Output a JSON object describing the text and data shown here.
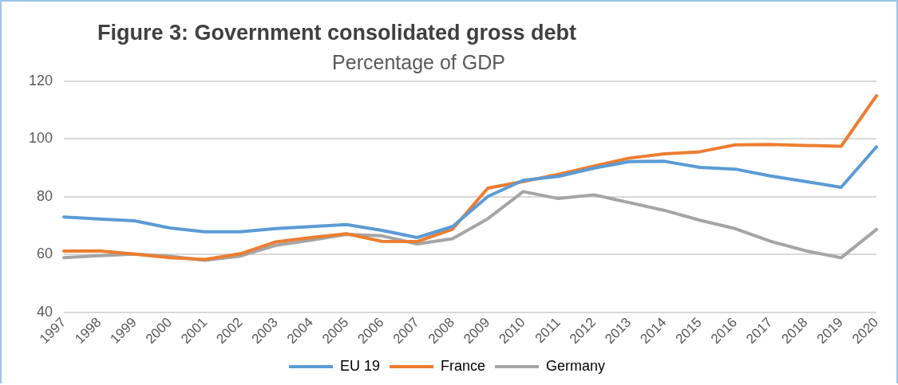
{
  "chart_data": {
    "type": "line",
    "title": "Figure 3: Government consolidated gross debt",
    "subtitle": "Percentage of GDP",
    "categories": [
      "1997",
      "1998",
      "1999",
      "2000",
      "2001",
      "2002",
      "2003",
      "2004",
      "2005",
      "2006",
      "2007",
      "2008",
      "2009",
      "2010",
      "2011",
      "2012",
      "2013",
      "2014",
      "2015",
      "2016",
      "2017",
      "2018",
      "2019",
      "2020"
    ],
    "series": [
      {
        "name": "EU 19",
        "color": "#5b9bd5",
        "values": [
          73,
          72.3,
          71.7,
          69.2,
          67.9,
          67.9,
          69,
          69.7,
          70.4,
          68.4,
          65.9,
          69.7,
          80.1,
          85.7,
          87.1,
          89.9,
          92.2,
          92.3,
          90.2,
          89.6,
          87.2,
          85.3,
          83.3,
          97.3
        ]
      },
      {
        "name": "France",
        "color": "#ed7d31",
        "values": [
          61.2,
          61.3,
          60.2,
          58.9,
          58.3,
          60.3,
          64.4,
          65.9,
          67.2,
          64.6,
          64.5,
          68.8,
          83,
          85.3,
          87.8,
          90.6,
          93.4,
          94.9,
          95.6,
          98,
          98.1,
          97.8,
          97.5,
          115
        ]
      },
      {
        "name": "Germany",
        "color": "#a5a5a5",
        "values": [
          58.9,
          59.6,
          60.2,
          59.4,
          58,
          59.5,
          63.2,
          65,
          67,
          66.5,
          63.7,
          65.5,
          72.4,
          81.8,
          79.4,
          80.7,
          78,
          75.3,
          71.9,
          69,
          64.6,
          61.3,
          58.9,
          68.7
        ]
      }
    ],
    "ylim": [
      40,
      120
    ],
    "yticks": [
      40,
      60,
      80,
      100,
      120
    ],
    "grid": "y",
    "legend": "bottom",
    "marker": "none",
    "line_style": "solid"
  }
}
